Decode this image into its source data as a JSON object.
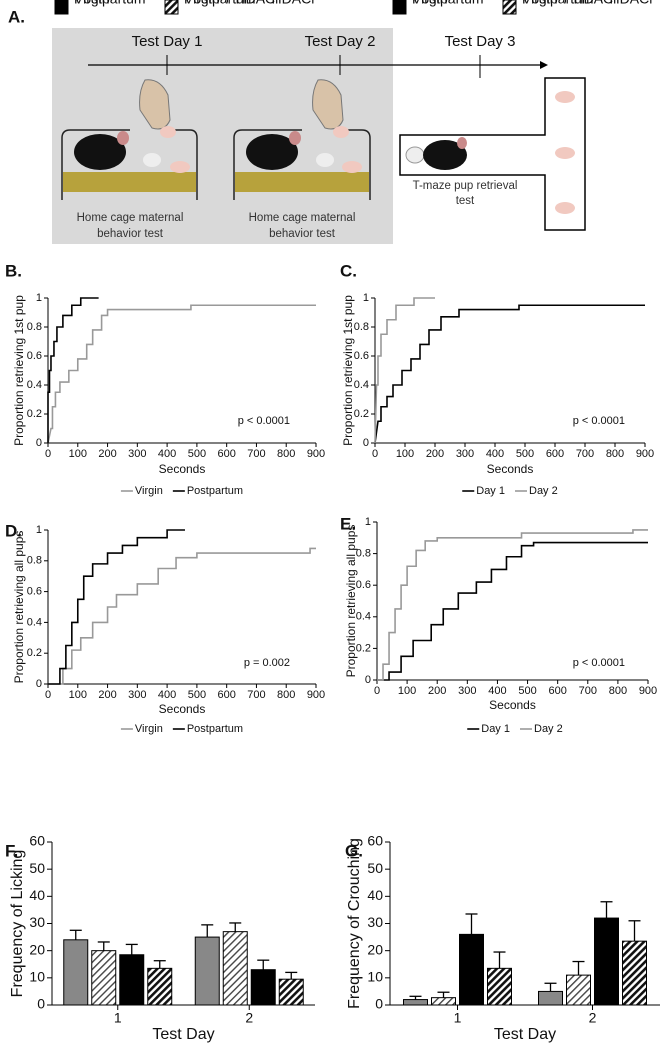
{
  "panel_a": {
    "label": "A.",
    "timeline": [
      "Test Day 1",
      "Test Day 2",
      "Test Day 3"
    ],
    "caption_1": [
      "Home cage maternal",
      "behavior test"
    ],
    "caption_2": [
      "Home cage maternal",
      "behavior test"
    ],
    "caption_3": [
      "T-maze pup retrieval",
      "test"
    ]
  },
  "chart_data": [
    {
      "type": "line",
      "panel": "B.",
      "x_label": "Seconds",
      "y_label": "Proportion retrieving 1st pup",
      "annotation": "p < 0.0001",
      "xlim": [
        0,
        900
      ],
      "xticks": [
        0,
        100,
        200,
        300,
        400,
        500,
        600,
        700,
        800,
        900
      ],
      "ylim": [
        0,
        1
      ],
      "yticks": [
        0,
        0.2,
        0.4,
        0.6,
        0.8,
        1
      ],
      "series": [
        {
          "name": "Virgin",
          "color": "#999999",
          "x": [
            0,
            10,
            15,
            15,
            25,
            25,
            40,
            40,
            70,
            70,
            100,
            100,
            130,
            130,
            150,
            150,
            180,
            180,
            200,
            200,
            480,
            480,
            900
          ],
          "values": [
            0,
            0.1,
            0.1,
            0.25,
            0.25,
            0.35,
            0.35,
            0.42,
            0.42,
            0.5,
            0.5,
            0.58,
            0.58,
            0.68,
            0.68,
            0.78,
            0.78,
            0.88,
            0.88,
            0.92,
            0.92,
            0.95,
            0.95
          ]
        },
        {
          "name": "Postpartum",
          "color": "#000000",
          "x": [
            0,
            0,
            5,
            5,
            10,
            10,
            20,
            20,
            30,
            30,
            50,
            50,
            80,
            80,
            110,
            110,
            170
          ],
          "values": [
            0,
            0.35,
            0.35,
            0.5,
            0.5,
            0.6,
            0.6,
            0.7,
            0.7,
            0.8,
            0.8,
            0.88,
            0.88,
            0.95,
            0.95,
            1,
            1
          ]
        }
      ]
    },
    {
      "type": "line",
      "panel": "C.",
      "x_label": "Seconds",
      "y_label": "Proportion retrieving 1st pup",
      "annotation": "p < 0.0001",
      "xlim": [
        0,
        900
      ],
      "xticks": [
        0,
        100,
        200,
        300,
        400,
        500,
        600,
        700,
        800,
        900
      ],
      "ylim": [
        0,
        1
      ],
      "yticks": [
        0,
        0.2,
        0.4,
        0.6,
        0.8,
        1
      ],
      "series": [
        {
          "name": "Day 1",
          "color": "#000000",
          "x": [
            0,
            10,
            20,
            20,
            40,
            40,
            60,
            60,
            90,
            90,
            120,
            120,
            150,
            150,
            180,
            180,
            220,
            220,
            280,
            280,
            480,
            480,
            900
          ],
          "values": [
            0,
            0.15,
            0.15,
            0.25,
            0.25,
            0.32,
            0.32,
            0.4,
            0.4,
            0.5,
            0.5,
            0.58,
            0.58,
            0.68,
            0.68,
            0.78,
            0.78,
            0.87,
            0.87,
            0.92,
            0.92,
            0.95,
            0.95
          ]
        },
        {
          "name": "Day 2",
          "color": "#999999",
          "x": [
            0,
            5,
            10,
            10,
            20,
            20,
            40,
            40,
            70,
            70,
            130,
            130,
            200
          ],
          "values": [
            0,
            0.4,
            0.4,
            0.6,
            0.6,
            0.75,
            0.75,
            0.85,
            0.85,
            0.95,
            0.95,
            1,
            1
          ]
        }
      ]
    },
    {
      "type": "line",
      "panel": "D.",
      "x_label": "Seconds",
      "y_label": "Proportion retrieving all pups",
      "annotation": "p = 0.002",
      "xlim": [
        0,
        900
      ],
      "xticks": [
        0,
        100,
        200,
        300,
        400,
        500,
        600,
        700,
        800,
        900
      ],
      "ylim": [
        0,
        1
      ],
      "yticks": [
        0,
        0.2,
        0.4,
        0.6,
        0.8,
        1
      ],
      "series": [
        {
          "name": "Virgin",
          "color": "#999999",
          "x": [
            0,
            50,
            50,
            80,
            80,
            110,
            110,
            150,
            150,
            200,
            200,
            230,
            230,
            300,
            300,
            370,
            370,
            430,
            430,
            500,
            500,
            880,
            880,
            900
          ],
          "values": [
            0,
            0,
            0.1,
            0.1,
            0.22,
            0.22,
            0.3,
            0.3,
            0.4,
            0.4,
            0.5,
            0.5,
            0.58,
            0.58,
            0.65,
            0.65,
            0.75,
            0.75,
            0.82,
            0.82,
            0.85,
            0.85,
            0.88,
            0.88
          ]
        },
        {
          "name": "Postpartum",
          "color": "#000000",
          "x": [
            0,
            40,
            40,
            60,
            60,
            80,
            80,
            100,
            100,
            120,
            120,
            150,
            150,
            200,
            200,
            250,
            250,
            300,
            300,
            400,
            400,
            460
          ],
          "values": [
            0,
            0,
            0.1,
            0.1,
            0.25,
            0.25,
            0.4,
            0.4,
            0.55,
            0.55,
            0.7,
            0.7,
            0.78,
            0.78,
            0.85,
            0.85,
            0.9,
            0.9,
            0.95,
            0.95,
            1,
            1
          ]
        }
      ]
    },
    {
      "type": "line",
      "panel": "E.",
      "x_label": "Seconds",
      "y_label": "Proportion retrieving all pups",
      "annotation": "p < 0.0001",
      "xlim": [
        0,
        900
      ],
      "xticks": [
        0,
        100,
        200,
        300,
        400,
        500,
        600,
        700,
        800,
        900
      ],
      "ylim": [
        0,
        1
      ],
      "yticks": [
        0,
        0.2,
        0.4,
        0.6,
        0.8,
        1
      ],
      "series": [
        {
          "name": "Day 1",
          "color": "#000000",
          "x": [
            0,
            40,
            40,
            80,
            80,
            120,
            120,
            180,
            180,
            220,
            220,
            270,
            270,
            330,
            330,
            380,
            380,
            430,
            430,
            480,
            480,
            520,
            520,
            900
          ],
          "values": [
            0,
            0,
            0.05,
            0.05,
            0.15,
            0.15,
            0.25,
            0.25,
            0.35,
            0.35,
            0.45,
            0.45,
            0.55,
            0.55,
            0.62,
            0.62,
            0.7,
            0.7,
            0.78,
            0.78,
            0.85,
            0.85,
            0.87,
            0.87
          ]
        },
        {
          "name": "Day 2",
          "color": "#999999",
          "x": [
            0,
            20,
            20,
            40,
            40,
            60,
            60,
            80,
            80,
            100,
            100,
            130,
            130,
            160,
            160,
            200,
            200,
            480,
            480,
            850,
            850,
            900
          ],
          "values": [
            0,
            0,
            0.1,
            0.1,
            0.3,
            0.3,
            0.45,
            0.45,
            0.6,
            0.6,
            0.72,
            0.72,
            0.82,
            0.82,
            0.88,
            0.88,
            0.9,
            0.9,
            0.93,
            0.93,
            0.95,
            0.95
          ]
        }
      ]
    },
    {
      "type": "bar",
      "panel": "F.",
      "x_label": "Test Day",
      "y_label": "Frequency of Licking",
      "categories": [
        "1",
        "2"
      ],
      "ylim": [
        0,
        60
      ],
      "yticks": [
        0,
        10,
        20,
        30,
        40,
        50,
        60
      ],
      "series": [
        {
          "name": "Virgin",
          "color": "#888888",
          "hatch": false,
          "values": [
            24,
            25
          ],
          "errors": [
            3.5,
            4.5
          ]
        },
        {
          "name": "Virgin + HDACi",
          "color": "#444444",
          "hatch": true,
          "values": [
            20,
            27
          ],
          "errors": [
            3.2,
            3.2
          ]
        },
        {
          "name": "Postpartum",
          "color": "#000000",
          "hatch": false,
          "values": [
            18.5,
            13
          ],
          "errors": [
            3.8,
            3.5
          ]
        },
        {
          "name": "Postpartum + HDACi",
          "color": "#111111",
          "hatch": true,
          "values": [
            13.5,
            9.5
          ],
          "errors": [
            2.8,
            2.5
          ]
        }
      ]
    },
    {
      "type": "bar",
      "panel": "G.",
      "x_label": "Test Day",
      "y_label": "Frequency of Crouching",
      "categories": [
        "1",
        "2"
      ],
      "ylim": [
        0,
        60
      ],
      "yticks": [
        0,
        10,
        20,
        30,
        40,
        50,
        60
      ],
      "series": [
        {
          "name": "Virgin",
          "color": "#888888",
          "hatch": false,
          "values": [
            2,
            5
          ],
          "errors": [
            1.2,
            3
          ]
        },
        {
          "name": "Virgin + HDACi",
          "color": "#444444",
          "hatch": true,
          "values": [
            2.7,
            11
          ],
          "errors": [
            2,
            5
          ]
        },
        {
          "name": "Postpartum",
          "color": "#000000",
          "hatch": false,
          "values": [
            26,
            32
          ],
          "errors": [
            7.5,
            6
          ]
        },
        {
          "name": "Postpartum + HDACi",
          "color": "#111111",
          "hatch": true,
          "values": [
            13.5,
            23.5
          ],
          "errors": [
            6,
            7.5
          ]
        }
      ]
    }
  ]
}
